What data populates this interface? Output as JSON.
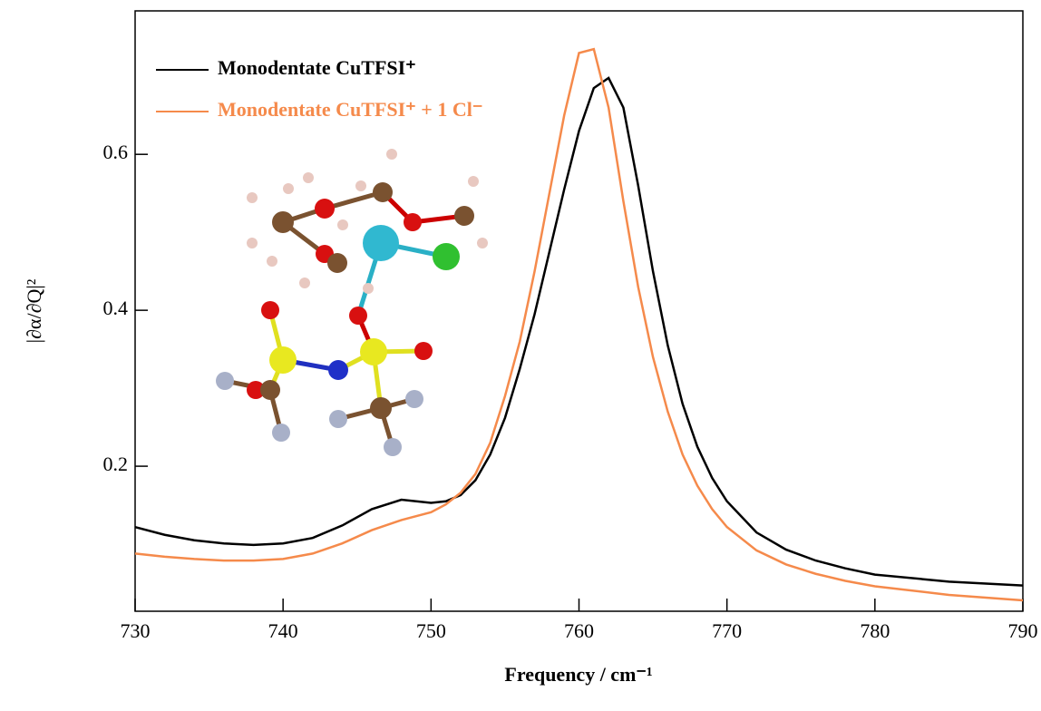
{
  "chart_data": {
    "type": "line",
    "x_label": "Frequency / cm⁻¹",
    "y_label": "|∂α/∂Q|²",
    "x": [
      730,
      732,
      734,
      736,
      738,
      740,
      742,
      744,
      746,
      748,
      750,
      751,
      752,
      753,
      754,
      755,
      756,
      757,
      758,
      759,
      760,
      761,
      762,
      763,
      764,
      765,
      766,
      767,
      768,
      769,
      770,
      772,
      774,
      776,
      778,
      780,
      785,
      790
    ],
    "series": [
      {
        "name": "Monodentate CuTFSI⁺",
        "color": "#000000",
        "values": [
          0.122,
          0.112,
          0.105,
          0.101,
          0.099,
          0.101,
          0.108,
          0.124,
          0.145,
          0.157,
          0.153,
          0.155,
          0.163,
          0.182,
          0.215,
          0.262,
          0.325,
          0.395,
          0.475,
          0.555,
          0.63,
          0.685,
          0.698,
          0.66,
          0.56,
          0.45,
          0.355,
          0.28,
          0.225,
          0.185,
          0.155,
          0.115,
          0.093,
          0.079,
          0.069,
          0.061,
          0.052,
          0.047
        ]
      },
      {
        "name": "Monodentate CuTFSI⁺ + 1 Cl⁻",
        "color": "#f58a4b",
        "values": [
          0.088,
          0.084,
          0.081,
          0.079,
          0.079,
          0.081,
          0.088,
          0.101,
          0.118,
          0.131,
          0.141,
          0.151,
          0.166,
          0.19,
          0.23,
          0.29,
          0.36,
          0.45,
          0.55,
          0.65,
          0.73,
          0.735,
          0.66,
          0.54,
          0.43,
          0.34,
          0.27,
          0.215,
          0.175,
          0.145,
          0.122,
          0.092,
          0.074,
          0.062,
          0.053,
          0.046,
          0.035,
          0.028
        ]
      }
    ],
    "xlim": [
      730,
      790
    ],
    "xticks": [
      730,
      740,
      750,
      760,
      770,
      780,
      790
    ],
    "ylim": [
      0.014,
      0.784
    ],
    "yticks": [
      0.2,
      0.4,
      0.6
    ],
    "grid": false,
    "legend": "upper left"
  }
}
